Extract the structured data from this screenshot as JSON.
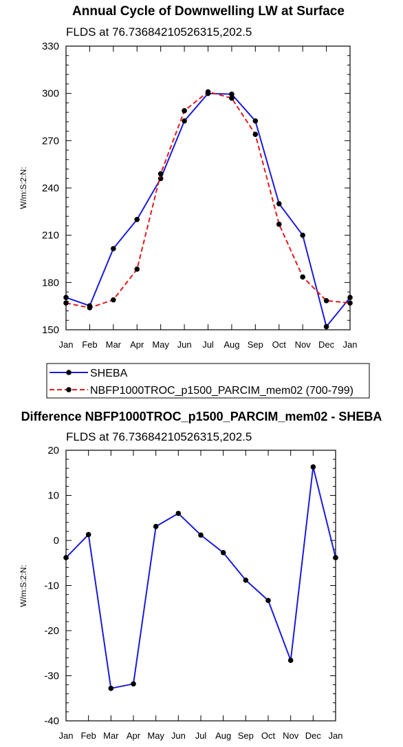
{
  "chart_data": [
    {
      "type": "line",
      "title": "Annual Cycle of Downwelling LW at Surface",
      "subtitle": "FLDS at 76.73684210526315,202.5",
      "xlabel": "",
      "ylabel": "W/m:S:2:N:",
      "categories": [
        "Jan",
        "Feb",
        "Mar",
        "Apr",
        "May",
        "Jun",
        "Jul",
        "Aug",
        "Sep",
        "Oct",
        "Nov",
        "Dec",
        "Jan"
      ],
      "ylim": [
        150,
        330
      ],
      "yticks": [
        150,
        180,
        210,
        240,
        270,
        300,
        330
      ],
      "grid": false,
      "legend": "below",
      "series": [
        {
          "name": "SHEBA",
          "color": "#1a1adb",
          "dash": "solid",
          "values": [
            170.5,
            165.2,
            201.5,
            220.0,
            246.0,
            282.5,
            300.0,
            299.5,
            282.5,
            230.0,
            210.0,
            152.0,
            170.5
          ]
        },
        {
          "name": "NBFP1000TROC_p1500_PARCIM_mem02 (700-799)",
          "color": "#e01b1b",
          "dash": "dashed",
          "values": [
            167.0,
            164.0,
            169.0,
            188.5,
            249.0,
            289.0,
            301.0,
            297.0,
            274.0,
            217.0,
            183.5,
            168.5,
            167.0
          ]
        }
      ]
    },
    {
      "type": "line",
      "title": "Difference NBFP1000TROC_p1500_PARCIM_mem02 - SHEBA",
      "subtitle": "FLDS at 76.73684210526315,202.5",
      "xlabel": "",
      "ylabel": "W/m:S:2:N:",
      "categories": [
        "Jan",
        "Feb",
        "Mar",
        "Apr",
        "May",
        "Jun",
        "Jul",
        "Aug",
        "Sep",
        "Oct",
        "Nov",
        "Dec",
        "Jan"
      ],
      "ylim": [
        -40,
        20
      ],
      "yticks": [
        -40,
        -30,
        -20,
        -10,
        0,
        10,
        20
      ],
      "grid": false,
      "series": [
        {
          "color": "#1a1adb",
          "dash": "solid",
          "values": [
            -3.8,
            1.3,
            -32.8,
            -31.8,
            3.1,
            6.0,
            1.2,
            -2.7,
            -8.8,
            -13.3,
            -26.6,
            16.3,
            -3.8
          ]
        }
      ]
    }
  ]
}
